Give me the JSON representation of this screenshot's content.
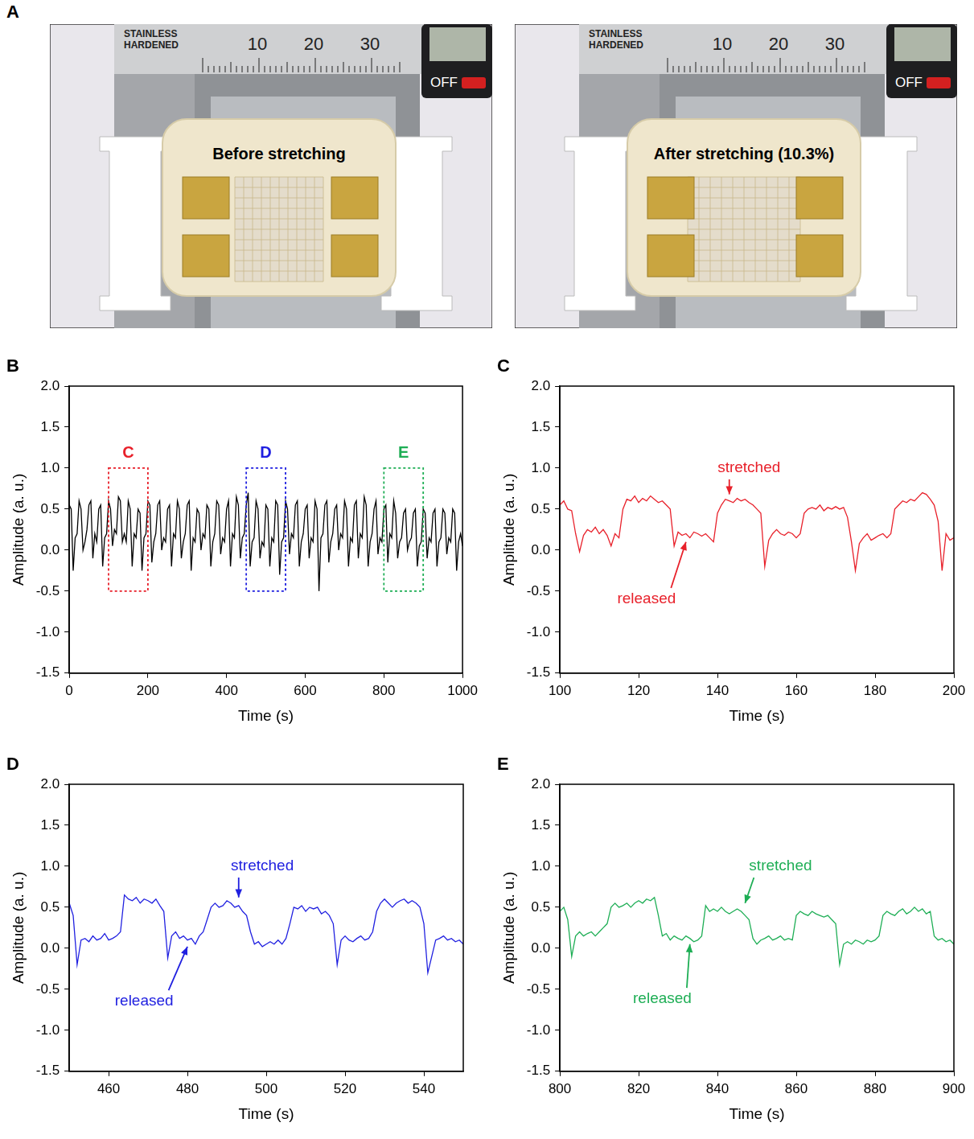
{
  "panel_a": {
    "panel": "A",
    "photos": [
      {
        "caption": "Before stretching",
        "stretched": false
      },
      {
        "caption": "After stretching (10.3%)",
        "stretched": true
      }
    ],
    "caliper": {
      "brand": [
        "STAINLESS",
        "HARDENED"
      ],
      "scale_labels": [
        10,
        20,
        30
      ],
      "button": "OFF"
    }
  },
  "chart_data": [
    {
      "type": "line",
      "panel": "B",
      "x_label": "Time (s)",
      "y_label": "Amplitude (a. u.)",
      "color": "#000000",
      "grid": false,
      "xlim": [
        0,
        1000
      ],
      "xticks": [
        0,
        200,
        400,
        600,
        800,
        1000
      ],
      "ylim": [
        -1.5,
        2.0
      ],
      "yticks": [
        -1.5,
        {
          "value": -1,
          "label": "-1.0"
        },
        -0.5,
        {
          "value": 0,
          "label": "0.0"
        },
        0.5,
        {
          "value": 1,
          "label": "1.0"
        },
        1.5,
        {
          "value": 2,
          "label": "2.0"
        }
      ],
      "x": [
        0,
        5,
        10,
        15,
        20,
        25,
        30,
        35,
        40,
        45,
        50,
        55,
        60,
        65,
        70,
        75,
        80,
        85,
        90,
        95,
        100,
        105,
        110,
        115,
        120,
        125,
        130,
        135,
        140,
        145,
        150,
        155,
        160,
        165,
        170,
        175,
        180,
        185,
        190,
        195,
        200,
        205,
        210,
        215,
        220,
        225,
        230,
        235,
        240,
        245,
        250,
        255,
        260,
        265,
        270,
        275,
        280,
        285,
        290,
        295,
        300,
        305,
        310,
        315,
        320,
        325,
        330,
        335,
        340,
        345,
        350,
        355,
        360,
        365,
        370,
        375,
        380,
        385,
        390,
        395,
        400,
        405,
        410,
        415,
        420,
        425,
        430,
        435,
        440,
        445,
        450,
        455,
        460,
        465,
        470,
        475,
        480,
        485,
        490,
        495,
        500,
        505,
        510,
        515,
        520,
        525,
        530,
        535,
        540,
        545,
        550,
        555,
        560,
        565,
        570,
        575,
        580,
        585,
        590,
        595,
        600,
        605,
        610,
        615,
        620,
        625,
        630,
        635,
        640,
        645,
        650,
        655,
        660,
        665,
        670,
        675,
        680,
        685,
        690,
        695,
        700,
        705,
        710,
        715,
        720,
        725,
        730,
        735,
        740,
        745,
        750,
        755,
        760,
        765,
        770,
        775,
        780,
        785,
        790,
        795,
        800,
        805,
        810,
        815,
        820,
        825,
        830,
        835,
        840,
        845,
        850,
        855,
        860,
        865,
        870,
        875,
        880,
        885,
        890,
        895,
        900,
        905,
        910,
        915,
        920,
        925,
        930,
        935,
        940,
        945,
        950,
        955,
        960,
        965,
        970,
        975,
        980,
        985,
        990,
        995,
        1000
      ],
      "values": [
        0.55,
        0.5,
        -0.25,
        0.15,
        0.2,
        0.6,
        0.5,
        0,
        0.1,
        0.25,
        0.55,
        0.6,
        -0.1,
        0.2,
        0.1,
        0.5,
        0.55,
        -0.2,
        0.15,
        0.2,
        0.6,
        0.5,
        0.05,
        0.25,
        0.2,
        0.65,
        0.6,
        0.1,
        0.2,
        0.1,
        0.6,
        0.5,
        -0.2,
        0.2,
        0.15,
        0.5,
        0.45,
        -0.25,
        0.15,
        0.2,
        0.6,
        0.55,
        -0.15,
        0.1,
        0.2,
        0.55,
        0.6,
        0,
        0.15,
        0.1,
        0.5,
        0.55,
        -0.2,
        0.2,
        0.15,
        0.6,
        0.5,
        -0.1,
        0.1,
        0.2,
        0.55,
        0.6,
        -0.25,
        0.15,
        0.1,
        0.5,
        0.45,
        0,
        0.2,
        0.15,
        0.55,
        0.5,
        -0.2,
        0.1,
        0.2,
        0.6,
        0.55,
        -0.05,
        0.15,
        0.1,
        0.5,
        0.6,
        -0.2,
        0.2,
        0.15,
        0.65,
        0.55,
        -0.1,
        0.15,
        0.2,
        0.55,
        0.7,
        -0.2,
        0.1,
        0.15,
        0.6,
        0.5,
        -0.1,
        0.1,
        0.05,
        0.55,
        0.5,
        -0.2,
        0.15,
        0.1,
        0.6,
        0.55,
        -0.3,
        0.1,
        0.15,
        0.6,
        0.5,
        -0.05,
        0.2,
        0.15,
        0.55,
        0.6,
        -0.2,
        0.1,
        0.2,
        0.5,
        0.55,
        -0.1,
        0.15,
        0.1,
        0.6,
        0.5,
        -0.5,
        0.15,
        0.2,
        0.55,
        0.6,
        -0.15,
        0.1,
        0.2,
        0.5,
        0.55,
        0,
        0.2,
        0.15,
        0.6,
        0.5,
        -0.2,
        0.15,
        0.1,
        0.55,
        0.6,
        -0.1,
        0.2,
        0.15,
        0.65,
        0.55,
        -0.2,
        0.1,
        0.2,
        0.5,
        0.6,
        -0.05,
        0.15,
        0.1,
        0.5,
        0.55,
        -0.15,
        0.2,
        0.15,
        0.6,
        0.45,
        -0.1,
        0.1,
        0.15,
        0.45,
        0.5,
        0,
        0.1,
        0.15,
        0.45,
        0.5,
        -0.2,
        0.05,
        0.1,
        0.5,
        0.45,
        -0.1,
        0.15,
        0.1,
        0.45,
        0.5,
        -0.2,
        0.1,
        0.15,
        0.5,
        0.45,
        -0.05,
        0.15,
        0.1,
        0.5,
        0.45,
        -0.25,
        0.1,
        0.2,
        0.05
      ],
      "regions": [
        {
          "label": "C",
          "color": "#e8202a",
          "x": [
            100,
            200
          ],
          "y": [
            -0.5,
            1.0
          ]
        },
        {
          "label": "D",
          "color": "#2020e0",
          "x": [
            450,
            550
          ],
          "y": [
            -0.5,
            1.0
          ]
        },
        {
          "label": "E",
          "color": "#1eae55",
          "x": [
            800,
            900
          ],
          "y": [
            -0.5,
            1.0
          ]
        }
      ]
    },
    {
      "type": "line",
      "panel": "C",
      "x_label": "Time (s)",
      "y_label": "Amplitude (a. u.)",
      "color": "#e8202a",
      "grid": false,
      "xlim": [
        100,
        200
      ],
      "xticks": [
        100,
        120,
        140,
        160,
        180,
        200
      ],
      "ylim": [
        -1.5,
        2.0
      ],
      "yticks": [
        -1.5,
        {
          "value": -1,
          "label": "-1.0"
        },
        -0.5,
        {
          "value": 0,
          "label": "0.0"
        },
        0.5,
        {
          "value": 1,
          "label": "1.0"
        },
        1.5,
        {
          "value": 2,
          "label": "2.0"
        }
      ],
      "x": [
        100,
        101,
        102,
        103,
        104,
        105,
        106,
        107,
        108,
        109,
        110,
        111,
        112,
        113,
        114,
        115,
        116,
        117,
        118,
        119,
        120,
        121,
        122,
        123,
        124,
        125,
        126,
        127,
        128,
        129,
        130,
        131,
        132,
        133,
        134,
        135,
        136,
        137,
        138,
        139,
        140,
        141,
        142,
        143,
        144,
        145,
        146,
        147,
        148,
        149,
        150,
        151,
        152,
        153,
        154,
        155,
        156,
        157,
        158,
        159,
        160,
        161,
        162,
        163,
        164,
        165,
        166,
        167,
        168,
        169,
        170,
        171,
        172,
        173,
        174,
        175,
        176,
        177,
        178,
        179,
        180,
        181,
        182,
        183,
        184,
        185,
        186,
        187,
        188,
        189,
        190,
        191,
        192,
        193,
        194,
        195,
        196,
        197,
        198,
        199,
        200
      ],
      "values": [
        0.55,
        0.6,
        0.5,
        0.48,
        0.2,
        -0.02,
        0.18,
        0.25,
        0.22,
        0.28,
        0.2,
        0.25,
        0.18,
        0.05,
        0.2,
        0.15,
        0.5,
        0.62,
        0.6,
        0.66,
        0.58,
        0.63,
        0.6,
        0.66,
        0.62,
        0.58,
        0.6,
        0.55,
        0.5,
        0.05,
        0.22,
        0.18,
        0.2,
        0.15,
        0.22,
        0.2,
        0.17,
        0.2,
        0.15,
        0.1,
        0.45,
        0.55,
        0.62,
        0.6,
        0.58,
        0.63,
        0.6,
        0.62,
        0.58,
        0.55,
        0.5,
        0.45,
        -0.2,
        0.12,
        0.2,
        0.25,
        0.2,
        0.18,
        0.22,
        0.2,
        0.15,
        0.2,
        0.45,
        0.5,
        0.52,
        0.5,
        0.55,
        0.48,
        0.52,
        0.5,
        0.53,
        0.5,
        0.52,
        0.4,
        0.1,
        -0.25,
        0.08,
        0.15,
        0.2,
        0.12,
        0.15,
        0.18,
        0.2,
        0.15,
        0.2,
        0.5,
        0.55,
        0.6,
        0.58,
        0.62,
        0.6,
        0.65,
        0.7,
        0.68,
        0.62,
        0.55,
        0.35,
        -0.25,
        0.2,
        0.12,
        0.15
      ],
      "annotations": [
        {
          "text": "stretched",
          "x": 148,
          "y": 1.0,
          "arrow_to": [
            143,
            0.68
          ]
        },
        {
          "text": "released",
          "x": 122,
          "y": -0.6,
          "arrow_to": [
            132,
            0.1
          ]
        }
      ]
    },
    {
      "type": "line",
      "panel": "D",
      "x_label": "Time (s)",
      "y_label": "Amplitude (a. u.)",
      "color": "#2020e0",
      "grid": false,
      "xlim": [
        450,
        550
      ],
      "xticks": [
        460,
        480,
        500,
        520,
        540
      ],
      "ylim": [
        -1.5,
        2.0
      ],
      "yticks": [
        -1.5,
        {
          "value": -1,
          "label": "-1.0"
        },
        -0.5,
        {
          "value": 0,
          "label": "0.0"
        },
        0.5,
        {
          "value": 1,
          "label": "1.0"
        },
        1.5,
        {
          "value": 2,
          "label": "2.0"
        }
      ],
      "x": [
        450,
        451,
        452,
        453,
        454,
        455,
        456,
        457,
        458,
        459,
        460,
        461,
        462,
        463,
        464,
        465,
        466,
        467,
        468,
        469,
        470,
        471,
        472,
        473,
        474,
        475,
        476,
        477,
        478,
        479,
        480,
        481,
        482,
        483,
        484,
        485,
        486,
        487,
        488,
        489,
        490,
        491,
        492,
        493,
        494,
        495,
        496,
        497,
        498,
        499,
        500,
        501,
        502,
        503,
        504,
        505,
        506,
        507,
        508,
        509,
        510,
        511,
        512,
        513,
        514,
        515,
        516,
        517,
        518,
        519,
        520,
        521,
        522,
        523,
        524,
        525,
        526,
        527,
        528,
        529,
        530,
        531,
        532,
        533,
        534,
        535,
        536,
        537,
        538,
        539,
        540,
        541,
        542,
        543,
        544,
        545,
        546,
        547,
        548,
        549,
        550
      ],
      "values": [
        0.55,
        0.4,
        -0.2,
        0.1,
        0.12,
        0.08,
        0.15,
        0.1,
        0.12,
        0.18,
        0.1,
        0.12,
        0.15,
        0.2,
        0.65,
        0.6,
        0.58,
        0.62,
        0.55,
        0.6,
        0.58,
        0.55,
        0.6,
        0.52,
        0.45,
        -0.12,
        0.15,
        0.2,
        0.12,
        0.15,
        0.1,
        0.12,
        0.05,
        0.15,
        0.2,
        0.35,
        0.5,
        0.55,
        0.5,
        0.52,
        0.58,
        0.55,
        0.5,
        0.52,
        0.45,
        0.4,
        0.2,
        0.05,
        0.08,
        0.02,
        0.05,
        0.08,
        0.05,
        0.1,
        0.05,
        0.12,
        0.3,
        0.5,
        0.48,
        0.52,
        0.45,
        0.5,
        0.48,
        0.5,
        0.42,
        0.45,
        0.4,
        0.3,
        -0.2,
        0.1,
        0.15,
        0.1,
        0.08,
        0.12,
        0.15,
        0.1,
        0.12,
        0.2,
        0.45,
        0.55,
        0.6,
        0.55,
        0.5,
        0.55,
        0.58,
        0.6,
        0.55,
        0.58,
        0.55,
        0.5,
        0.3,
        -0.3,
        -0.1,
        0.1,
        0.12,
        0.15,
        0.1,
        0.12,
        0.08,
        0.1,
        0.05
      ],
      "annotations": [
        {
          "text": "stretched",
          "x": 499,
          "y": 1.0,
          "arrow_to": [
            493,
            0.62
          ]
        },
        {
          "text": "released",
          "x": 469,
          "y": -0.65,
          "arrow_to": [
            480,
            0.02
          ]
        }
      ]
    },
    {
      "type": "line",
      "panel": "E",
      "x_label": "Time (s)",
      "y_label": "Amplitude (a. u.)",
      "color": "#1eae55",
      "grid": false,
      "xlim": [
        800,
        900
      ],
      "xticks": [
        800,
        820,
        840,
        860,
        880,
        900
      ],
      "ylim": [
        -1.5,
        2.0
      ],
      "yticks": [
        -1.5,
        {
          "value": -1,
          "label": "-1.0"
        },
        -0.5,
        {
          "value": 0,
          "label": "0.0"
        },
        0.5,
        {
          "value": 1,
          "label": "1.0"
        },
        1.5,
        {
          "value": 2,
          "label": "2.0"
        }
      ],
      "x": [
        800,
        801,
        802,
        803,
        804,
        805,
        806,
        807,
        808,
        809,
        810,
        811,
        812,
        813,
        814,
        815,
        816,
        817,
        818,
        819,
        820,
        821,
        822,
        823,
        824,
        825,
        826,
        827,
        828,
        829,
        830,
        831,
        832,
        833,
        834,
        835,
        836,
        837,
        838,
        839,
        840,
        841,
        842,
        843,
        844,
        845,
        846,
        847,
        848,
        849,
        850,
        851,
        852,
        853,
        854,
        855,
        856,
        857,
        858,
        859,
        860,
        861,
        862,
        863,
        864,
        865,
        866,
        867,
        868,
        869,
        870,
        871,
        872,
        873,
        874,
        875,
        876,
        877,
        878,
        879,
        880,
        881,
        882,
        883,
        884,
        885,
        886,
        887,
        888,
        889,
        890,
        891,
        892,
        893,
        894,
        895,
        896,
        897,
        898,
        899,
        900
      ],
      "values": [
        0.45,
        0.5,
        0.35,
        -0.1,
        0.15,
        0.2,
        0.15,
        0.18,
        0.2,
        0.15,
        0.2,
        0.25,
        0.3,
        0.5,
        0.55,
        0.5,
        0.52,
        0.55,
        0.5,
        0.55,
        0.58,
        0.55,
        0.6,
        0.58,
        0.62,
        0.4,
        0.15,
        0.18,
        0.1,
        0.15,
        0.12,
        0.1,
        0.15,
        0.12,
        0.08,
        0.1,
        0.15,
        0.52,
        0.45,
        0.48,
        0.45,
        0.5,
        0.45,
        0.42,
        0.45,
        0.48,
        0.45,
        0.4,
        0.35,
        0.12,
        0.05,
        0.1,
        0.12,
        0.15,
        0.1,
        0.12,
        0.15,
        0.1,
        0.12,
        0.1,
        0.4,
        0.45,
        0.42,
        0.4,
        0.45,
        0.42,
        0.4,
        0.38,
        0.4,
        0.35,
        0.3,
        -0.2,
        0.05,
        0.08,
        0.05,
        0.1,
        0.08,
        0.05,
        0.1,
        0.08,
        0.1,
        0.15,
        0.4,
        0.45,
        0.42,
        0.4,
        0.45,
        0.48,
        0.42,
        0.45,
        0.5,
        0.45,
        0.48,
        0.42,
        0.45,
        0.15,
        0.1,
        0.12,
        0.08,
        0.1,
        0.05
      ],
      "annotations": [
        {
          "text": "stretched",
          "x": 856,
          "y": 1.0,
          "arrow_to": [
            847,
            0.55
          ]
        },
        {
          "text": "released",
          "x": 826,
          "y": -0.62,
          "arrow_to": [
            833,
            0.05
          ]
        }
      ]
    }
  ]
}
